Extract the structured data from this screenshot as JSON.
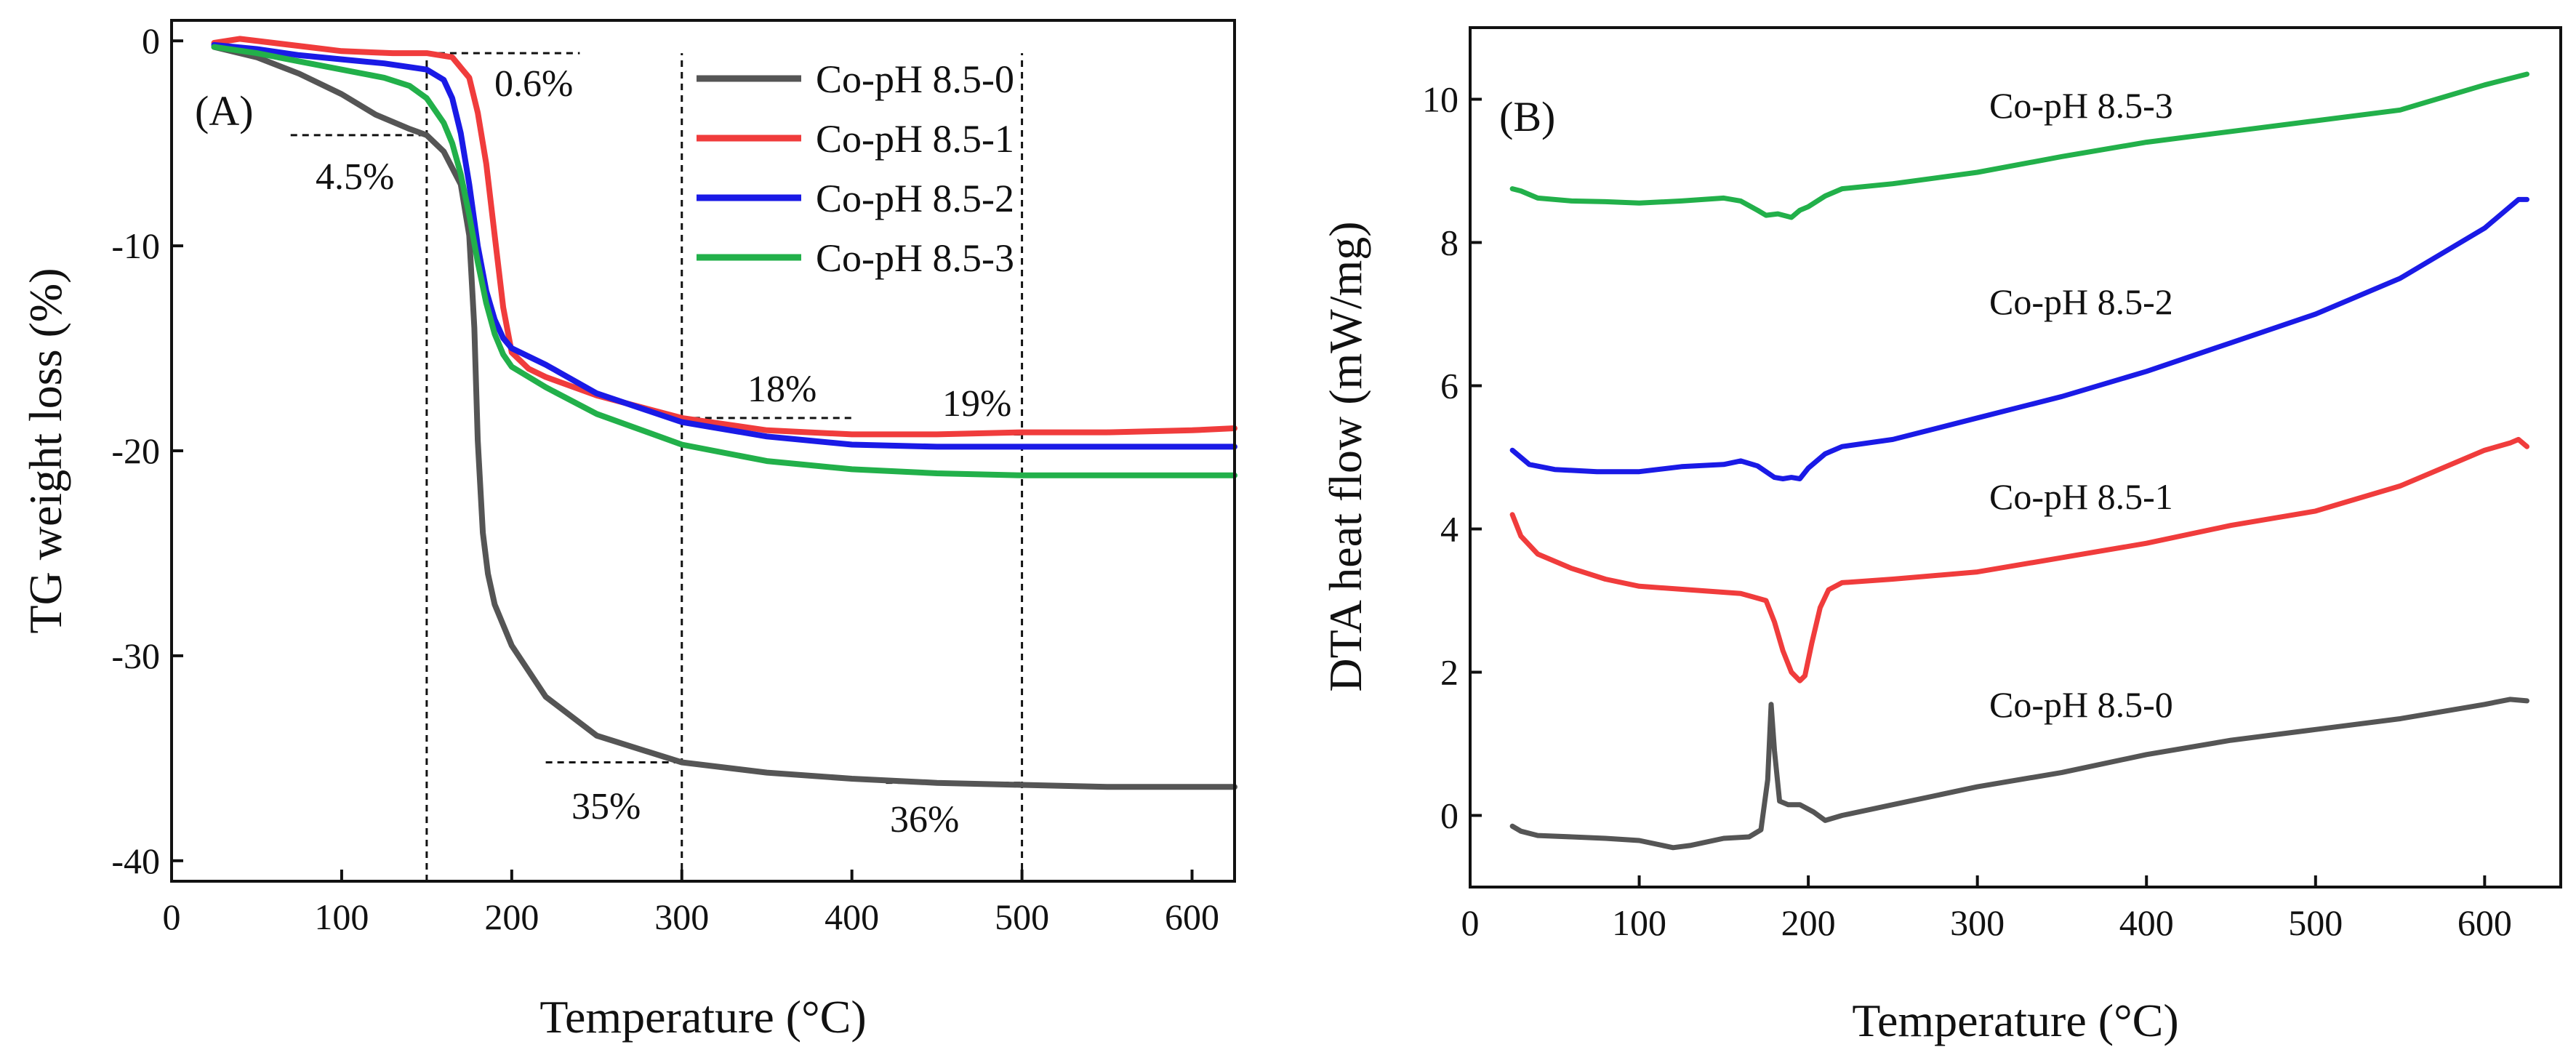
{
  "chart_data": [
    {
      "type": "line",
      "panel_label": "(A)",
      "xlabel": "Temperature (°C)",
      "ylabel": "TG weight loss (%)",
      "xlim": [
        0,
        625
      ],
      "ylim": [
        -41,
        1
      ],
      "xticks": [
        0,
        100,
        200,
        300,
        400,
        500,
        600
      ],
      "yticks": [
        0,
        -10,
        -20,
        -30,
        -40
      ],
      "xtick_labels": [
        "0",
        "100",
        "200",
        "300",
        "400",
        "500",
        "600"
      ],
      "ytick_labels": [
        "0",
        "-10",
        "-20",
        "-30",
        "-40"
      ],
      "legend_position": "top-right",
      "series": [
        {
          "name": "Co-pH 8.5-0",
          "color": "#555555",
          "x": [
            25,
            50,
            75,
            100,
            120,
            140,
            150,
            160,
            170,
            175,
            178,
            180,
            183,
            186,
            190,
            200,
            220,
            250,
            300,
            350,
            400,
            450,
            500,
            550,
            600,
            625
          ],
          "y": [
            -0.3,
            -0.8,
            -1.6,
            -2.6,
            -3.6,
            -4.3,
            -4.6,
            -5.4,
            -7.0,
            -9.5,
            -14.0,
            -19.5,
            -24.0,
            -26.0,
            -27.5,
            -29.5,
            -32.0,
            -33.9,
            -35.2,
            -35.7,
            -36.0,
            -36.2,
            -36.3,
            -36.4,
            -36.4,
            -36.4
          ]
        },
        {
          "name": "Co-pH 8.5-1",
          "color": "#f03c3c",
          "x": [
            25,
            40,
            60,
            80,
            100,
            130,
            150,
            165,
            175,
            180,
            185,
            190,
            195,
            200,
            210,
            220,
            250,
            300,
            350,
            400,
            450,
            500,
            550,
            600,
            625
          ],
          "y": [
            -0.1,
            0.1,
            -0.1,
            -0.3,
            -0.5,
            -0.6,
            -0.6,
            -0.8,
            -1.8,
            -3.5,
            -6.0,
            -9.5,
            -13.0,
            -15.2,
            -16.0,
            -16.4,
            -17.3,
            -18.4,
            -19.0,
            -19.2,
            -19.2,
            -19.1,
            -19.1,
            -19.0,
            -18.9
          ]
        },
        {
          "name": "Co-pH 8.5-2",
          "color": "#1a1ae6",
          "x": [
            25,
            50,
            75,
            100,
            125,
            150,
            160,
            165,
            170,
            175,
            180,
            185,
            190,
            195,
            200,
            220,
            250,
            300,
            350,
            400,
            450,
            500,
            550,
            600,
            625
          ],
          "y": [
            -0.2,
            -0.4,
            -0.7,
            -0.9,
            -1.1,
            -1.4,
            -1.9,
            -2.8,
            -4.5,
            -7.0,
            -10.0,
            -12.2,
            -13.6,
            -14.5,
            -15.0,
            -15.8,
            -17.2,
            -18.6,
            -19.3,
            -19.7,
            -19.8,
            -19.8,
            -19.8,
            -19.8,
            -19.8
          ]
        },
        {
          "name": "Co-pH 8.5-3",
          "color": "#22b04a",
          "x": [
            25,
            50,
            75,
            100,
            125,
            140,
            150,
            160,
            165,
            170,
            175,
            180,
            185,
            190,
            195,
            200,
            220,
            250,
            300,
            350,
            400,
            450,
            500,
            550,
            600,
            625
          ],
          "y": [
            -0.3,
            -0.6,
            -1.0,
            -1.4,
            -1.8,
            -2.2,
            -2.8,
            -4.0,
            -5.0,
            -6.5,
            -8.5,
            -10.8,
            -12.8,
            -14.3,
            -15.3,
            -15.9,
            -16.9,
            -18.2,
            -19.7,
            -20.5,
            -20.9,
            -21.1,
            -21.2,
            -21.2,
            -21.2,
            -21.2
          ]
        }
      ],
      "annotations": [
        "0.6%",
        "4.5%",
        "18%",
        "19%",
        "35%",
        "36%"
      ],
      "reference_lines": {
        "vertical_x": [
          150,
          300,
          500
        ],
        "horizontal": [
          {
            "y": -0.6,
            "x1": 150,
            "x2": 240
          },
          {
            "y": -4.6,
            "x1": 70,
            "x2": 150
          },
          {
            "y": -18.4,
            "x1": 300,
            "x2": 400
          },
          {
            "y": -19.2,
            "x1": 420,
            "x2": 500
          },
          {
            "y": -35.2,
            "x1": 220,
            "x2": 300
          },
          {
            "y": -36.2,
            "x1": 420,
            "x2": 500
          }
        ]
      }
    },
    {
      "type": "line",
      "panel_label": "(B)",
      "xlabel": "Temperature (°C)",
      "ylabel": "DTA heat flow (mW/mg)",
      "xlim": [
        0,
        645
      ],
      "ylim": [
        -1,
        11
      ],
      "xticks": [
        0,
        100,
        200,
        300,
        400,
        500,
        600
      ],
      "yticks": [
        0,
        2,
        4,
        6,
        8,
        10
      ],
      "xtick_labels": [
        "0",
        "100",
        "200",
        "300",
        "400",
        "500",
        "600"
      ],
      "ytick_labels": [
        "0",
        "2",
        "4",
        "6",
        "8",
        "10"
      ],
      "series": [
        {
          "name": "Co-pH 8.5-0",
          "color": "#555555",
          "x": [
            25,
            30,
            40,
            60,
            80,
            100,
            120,
            130,
            150,
            165,
            172,
            176,
            178,
            180,
            183,
            188,
            195,
            203,
            210,
            220,
            250,
            300,
            350,
            400,
            450,
            500,
            550,
            600,
            615,
            625
          ],
          "y": [
            -0.15,
            -0.22,
            -0.28,
            -0.3,
            -0.32,
            -0.35,
            -0.45,
            -0.42,
            -0.32,
            -0.3,
            -0.2,
            0.5,
            1.55,
            0.9,
            0.2,
            0.15,
            0.15,
            0.05,
            -0.07,
            0.0,
            0.15,
            0.4,
            0.6,
            0.85,
            1.05,
            1.2,
            1.35,
            1.55,
            1.62,
            1.6
          ]
        },
        {
          "name": "Co-pH 8.5-1",
          "color": "#f03c3c",
          "x": [
            25,
            30,
            40,
            60,
            80,
            100,
            130,
            160,
            175,
            180,
            185,
            190,
            195,
            198,
            202,
            207,
            212,
            220,
            250,
            300,
            350,
            400,
            450,
            500,
            550,
            600,
            615,
            620,
            625
          ],
          "y": [
            4.2,
            3.9,
            3.65,
            3.45,
            3.3,
            3.2,
            3.15,
            3.1,
            3.0,
            2.7,
            2.3,
            2.0,
            1.88,
            1.95,
            2.4,
            2.9,
            3.15,
            3.25,
            3.3,
            3.4,
            3.6,
            3.8,
            4.05,
            4.25,
            4.6,
            5.1,
            5.2,
            5.25,
            5.15
          ]
        },
        {
          "name": "Co-pH 8.5-2",
          "color": "#1a1ae6",
          "x": [
            25,
            35,
            50,
            75,
            100,
            125,
            150,
            160,
            170,
            180,
            185,
            190,
            195,
            200,
            210,
            220,
            250,
            300,
            350,
            400,
            450,
            500,
            550,
            600,
            620,
            625
          ],
          "y": [
            5.1,
            4.9,
            4.83,
            4.8,
            4.8,
            4.87,
            4.9,
            4.95,
            4.88,
            4.72,
            4.7,
            4.72,
            4.7,
            4.85,
            5.05,
            5.15,
            5.25,
            5.55,
            5.85,
            6.2,
            6.6,
            7.0,
            7.5,
            8.2,
            8.6,
            8.6
          ]
        },
        {
          "name": "Co-pH 8.5-3",
          "color": "#22b04a",
          "x": [
            25,
            30,
            40,
            60,
            80,
            100,
            125,
            150,
            160,
            170,
            175,
            182,
            190,
            195,
            200,
            210,
            220,
            250,
            300,
            350,
            400,
            450,
            500,
            550,
            600,
            625
          ],
          "y": [
            8.75,
            8.72,
            8.62,
            8.58,
            8.57,
            8.55,
            8.58,
            8.62,
            8.58,
            8.45,
            8.38,
            8.4,
            8.35,
            8.45,
            8.5,
            8.65,
            8.75,
            8.82,
            8.98,
            9.2,
            9.4,
            9.55,
            9.7,
            9.85,
            10.2,
            10.35
          ]
        }
      ]
    }
  ]
}
